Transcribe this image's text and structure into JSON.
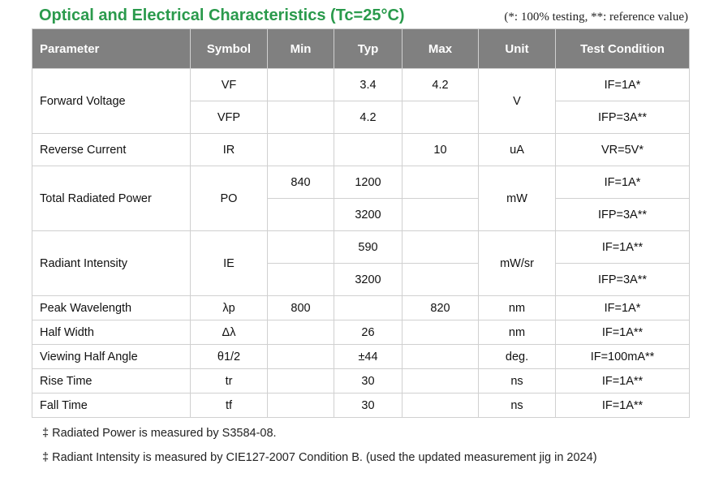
{
  "title": "Optical and Electrical Characteristics (Tc=25°C)",
  "note": "(*: 100% testing, **: reference value)",
  "headers": [
    "Parameter",
    "Symbol",
    "Min",
    "Typ",
    "Max",
    "Unit",
    "Test Condition"
  ],
  "rows": {
    "forward_voltage": {
      "param": "Forward Voltage",
      "unit": "V",
      "sub": [
        {
          "symbol": "VF",
          "min": "",
          "typ": "3.4",
          "max": "4.2",
          "cond": "IF=1A*"
        },
        {
          "symbol": "VFP",
          "min": "",
          "typ": "4.2",
          "max": "",
          "cond": "IFP=3A**"
        }
      ]
    },
    "reverse_current": {
      "param": "Reverse Current",
      "symbol": "IR",
      "min": "",
      "typ": "",
      "max": "10",
      "unit": "uA",
      "cond": "VR=5V*"
    },
    "total_radiated_power": {
      "param": "Total Radiated Power",
      "symbol": "PO",
      "unit": "mW",
      "sub": [
        {
          "min": "840",
          "typ": "1200",
          "max": "",
          "cond": "IF=1A*"
        },
        {
          "min": "",
          "typ": "3200",
          "max": "",
          "cond": "IFP=3A**"
        }
      ]
    },
    "radiant_intensity": {
      "param": "Radiant Intensity",
      "symbol": "IE",
      "unit": "mW/sr",
      "sub": [
        {
          "min": "",
          "typ": "590",
          "max": "",
          "cond": "IF=1A**"
        },
        {
          "min": "",
          "typ": "3200",
          "max": "",
          "cond": "IFP=3A**"
        }
      ]
    },
    "peak_wavelength": {
      "param": "Peak Wavelength",
      "symbol": "λp",
      "min": "800",
      "typ": "",
      "max": "820",
      "unit": "nm",
      "cond": "IF=1A*"
    },
    "half_width": {
      "param": "Half Width",
      "symbol": "Δλ",
      "min": "",
      "typ": "26",
      "max": "",
      "unit": "nm",
      "cond": "IF=1A**"
    },
    "viewing_half_angle": {
      "param": "Viewing Half Angle",
      "symbol": "θ1/2",
      "min": "",
      "typ": "±44",
      "max": "",
      "unit": "deg.",
      "cond": "IF=100mA**"
    },
    "rise_time": {
      "param": "Rise Time",
      "symbol": "tr",
      "min": "",
      "typ": "30",
      "max": "",
      "unit": "ns",
      "cond": "IF=1A**"
    },
    "fall_time": {
      "param": "Fall Time",
      "symbol": "tf",
      "min": "",
      "typ": "30",
      "max": "",
      "unit": "ns",
      "cond": "IF=1A**"
    }
  },
  "footnotes": [
    "‡ Radiated Power is measured by S3584-08.",
    "‡ Radiant Intensity is measured by CIE127-2007 Condition B. (used the updated measurement jig in 2024)"
  ]
}
